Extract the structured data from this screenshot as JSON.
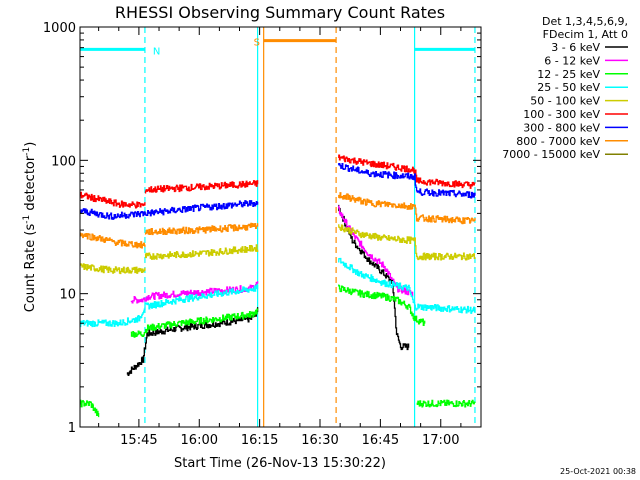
{
  "chart_data": {
    "type": "line",
    "title": "RHESSI Observing Summary Count Rates",
    "xlabel": "Start Time (26-Nov-13 15:30:22)",
    "ylabel": "Count Rate (s⁻¹ detector⁻¹)",
    "ylabel_base": "Count Rate (s",
    "ylabel_sup1": "-1",
    "ylabel_mid": " detector",
    "ylabel_sup2": "-1",
    "ylabel_end": ")",
    "yscale": "log",
    "ylim": [
      1,
      1000
    ],
    "xlim": [
      "15:30:22",
      "17:10:00"
    ],
    "x_ticks": [
      "15:45",
      "16:00",
      "16:15",
      "16:30",
      "16:45",
      "17:00"
    ],
    "y_ticks": [
      "1",
      "10",
      "100",
      "1000"
    ],
    "legend_header": [
      "Det 1,3,4,5,6,9,",
      "FDecim 1, Att 0"
    ],
    "legend_placement": "right",
    "timestamp": "25-Oct-2021 00:38",
    "flags": [
      {
        "label": "N",
        "color": "#00ffff",
        "start": "15:30:22",
        "end": "15:46:30",
        "level": 680
      },
      {
        "label": "",
        "color": "#00ffff",
        "start": "16:53:30",
        "end": "17:08:30",
        "level": 680
      },
      {
        "label": "S",
        "color": "#ff8c00",
        "start": "16:16:00",
        "end": "16:34:00",
        "level": 790
      }
    ],
    "vertical_markers": [
      {
        "time": "15:46:30",
        "color": "#00ffff",
        "style": "dashed"
      },
      {
        "time": "16:14:30",
        "color": "#00ffff",
        "style": "solid"
      },
      {
        "time": "16:16:00",
        "color": "#ff8c00",
        "style": "solid"
      },
      {
        "time": "16:34:00",
        "color": "#ff8c00",
        "style": "dashed"
      },
      {
        "time": "16:53:30",
        "color": "#00ffff",
        "style": "solid"
      },
      {
        "time": "17:08:30",
        "color": "#00ffff",
        "style": "dashed"
      }
    ],
    "series": [
      {
        "name": "3 - 6 keV",
        "color": "#000000",
        "segments": [
          {
            "t0": "15:42:00",
            "t1": "16:14:30",
            "points": [
              [
                "15:42:00",
                2.5
              ],
              [
                "15:46:00",
                3.2
              ],
              [
                "15:47:00",
                5
              ],
              [
                "15:55:00",
                5.5
              ],
              [
                "16:05:00",
                6
              ],
              [
                "16:13:00",
                6.5
              ],
              [
                "16:14:30",
                7.5
              ]
            ]
          },
          {
            "t0": "16:34:30",
            "t1": "16:53:30",
            "points": [
              [
                "16:34:30",
                45
              ],
              [
                "16:38:00",
                25
              ],
              [
                "16:42:00",
                18
              ],
              [
                "16:46:00",
                14
              ],
              [
                "16:48:00",
                12
              ],
              [
                "16:49:00",
                5
              ],
              [
                "16:50:00",
                4
              ],
              [
                "16:52:00",
                4
              ]
            ]
          }
        ]
      },
      {
        "name": "6 - 12 keV",
        "color": "#ff00ff",
        "segments": [
          {
            "t0": "15:43:00",
            "t1": "16:14:30",
            "points": [
              [
                "15:43:00",
                9
              ],
              [
                "15:46:00",
                9
              ],
              [
                "15:47:00",
                9.5
              ],
              [
                "15:55:00",
                10
              ],
              [
                "16:05:00",
                10.5
              ],
              [
                "16:13:00",
                11
              ],
              [
                "16:14:30",
                12
              ]
            ]
          },
          {
            "t0": "16:34:30",
            "t1": "16:53:30",
            "points": [
              [
                "16:34:30",
                43
              ],
              [
                "16:38:00",
                28
              ],
              [
                "16:42:00",
                20
              ],
              [
                "16:46:00",
                16
              ],
              [
                "16:49:00",
                11
              ],
              [
                "16:53:00",
                10
              ]
            ]
          }
        ]
      },
      {
        "name": "12 - 25 keV",
        "color": "#00ff00",
        "segments": [
          {
            "t0": "15:43:00",
            "t1": "16:14:30",
            "points": [
              [
                "15:43:00",
                5
              ],
              [
                "15:46:00",
                5
              ],
              [
                "15:47:00",
                5.5
              ],
              [
                "15:55:00",
                6
              ],
              [
                "16:05:00",
                6.5
              ],
              [
                "16:13:00",
                7
              ],
              [
                "16:14:30",
                7.5
              ]
            ]
          },
          {
            "t0": "16:34:30",
            "t1": "16:56:00",
            "points": [
              [
                "16:34:30",
                11
              ],
              [
                "16:40:00",
                10
              ],
              [
                "16:46:00",
                9.5
              ],
              [
                "16:49:00",
                9
              ],
              [
                "16:52:00",
                8
              ],
              [
                "16:53:30",
                6.5
              ],
              [
                "16:56:00",
                6
              ]
            ]
          },
          {
            "t0": "15:30:22",
            "t1": "15:35:00",
            "points": [
              [
                "15:30:22",
                1.5
              ],
              [
                "15:33:00",
                1.5
              ],
              [
                "15:35:00",
                1.2
              ]
            ]
          },
          {
            "t0": "16:54:00",
            "t1": "17:08:30",
            "points": [
              [
                "16:54:00",
                1.5
              ],
              [
                "17:00:00",
                1.5
              ],
              [
                "17:08:30",
                1.5
              ]
            ]
          }
        ]
      },
      {
        "name": "25 - 50 keV",
        "color": "#00ffff",
        "segments": [
          {
            "t0": "15:30:22",
            "t1": "16:14:30",
            "points": [
              [
                "15:30:22",
                6
              ],
              [
                "15:40:00",
                6
              ],
              [
                "15:45:00",
                6.5
              ],
              [
                "15:46:30",
                8
              ],
              [
                "15:55:00",
                9
              ],
              [
                "16:05:00",
                10
              ],
              [
                "16:14:30",
                11
              ]
            ]
          },
          {
            "t0": "16:34:30",
            "t1": "17:08:30",
            "points": [
              [
                "16:34:30",
                18
              ],
              [
                "16:40:00",
                14
              ],
              [
                "16:46:00",
                12
              ],
              [
                "16:52:00",
                11
              ],
              [
                "16:53:30",
                8
              ],
              [
                "17:00:00",
                7.8
              ],
              [
                "17:08:30",
                7.5
              ]
            ]
          }
        ]
      },
      {
        "name": "50 - 100 keV",
        "color": "#cccc00",
        "segments": [
          {
            "t0": "15:30:22",
            "t1": "15:46:30",
            "points": [
              [
                "15:30:22",
                16
              ],
              [
                "15:38:00",
                15
              ],
              [
                "15:46:30",
                15
              ]
            ]
          },
          {
            "t0": "15:46:30",
            "t1": "16:14:30",
            "points": [
              [
                "15:46:30",
                19
              ],
              [
                "16:00:00",
                20
              ],
              [
                "16:14:30",
                22
              ]
            ]
          },
          {
            "t0": "16:34:30",
            "t1": "17:08:30",
            "points": [
              [
                "16:34:30",
                32
              ],
              [
                "16:40:00",
                28
              ],
              [
                "16:46:00",
                26
              ],
              [
                "16:53:30",
                25
              ],
              [
                "16:54:00",
                19
              ],
              [
                "17:08:30",
                19
              ]
            ]
          }
        ]
      },
      {
        "name": "100 - 300 keV",
        "color": "#ff0000",
        "segments": [
          {
            "t0": "15:30:22",
            "t1": "15:46:30",
            "points": [
              [
                "15:30:22",
                55
              ],
              [
                "15:40:00",
                47
              ],
              [
                "15:46:30",
                46
              ]
            ]
          },
          {
            "t0": "15:46:30",
            "t1": "16:14:30",
            "points": [
              [
                "15:46:30",
                60
              ],
              [
                "16:00:00",
                63
              ],
              [
                "16:14:30",
                67
              ]
            ]
          },
          {
            "t0": "16:34:30",
            "t1": "17:08:30",
            "points": [
              [
                "16:34:30",
                105
              ],
              [
                "16:42:00",
                95
              ],
              [
                "16:53:30",
                85
              ],
              [
                "16:54:00",
                70
              ],
              [
                "17:08:30",
                65
              ]
            ]
          }
        ]
      },
      {
        "name": "300 - 800 keV",
        "color": "#0000ff",
        "segments": [
          {
            "t0": "15:30:22",
            "t1": "16:14:30",
            "points": [
              [
                "15:30:22",
                42
              ],
              [
                "15:38:00",
                38
              ],
              [
                "15:46:30",
                40
              ],
              [
                "16:00:00",
                44
              ],
              [
                "16:14:30",
                48
              ]
            ]
          },
          {
            "t0": "16:34:30",
            "t1": "17:08:30",
            "points": [
              [
                "16:34:30",
                92
              ],
              [
                "16:42:00",
                80
              ],
              [
                "16:53:30",
                75
              ],
              [
                "16:54:00",
                58
              ],
              [
                "17:08:30",
                55
              ]
            ]
          }
        ]
      },
      {
        "name": "800 - 7000 keV",
        "color": "#ff8c00",
        "segments": [
          {
            "t0": "15:30:22",
            "t1": "15:46:30",
            "points": [
              [
                "15:30:22",
                28
              ],
              [
                "15:40:00",
                24
              ],
              [
                "15:46:30",
                23
              ]
            ]
          },
          {
            "t0": "15:46:30",
            "t1": "16:14:30",
            "points": [
              [
                "15:46:30",
                29
              ],
              [
                "16:00:00",
                30
              ],
              [
                "16:14:30",
                32
              ]
            ]
          },
          {
            "t0": "16:34:30",
            "t1": "17:08:30",
            "points": [
              [
                "16:34:30",
                55
              ],
              [
                "16:42:00",
                48
              ],
              [
                "16:53:30",
                45
              ],
              [
                "16:54:00",
                37
              ],
              [
                "17:08:30",
                35
              ]
            ]
          }
        ]
      },
      {
        "name": "7000 - 15000 keV",
        "color": "#808000",
        "segments": []
      }
    ]
  }
}
